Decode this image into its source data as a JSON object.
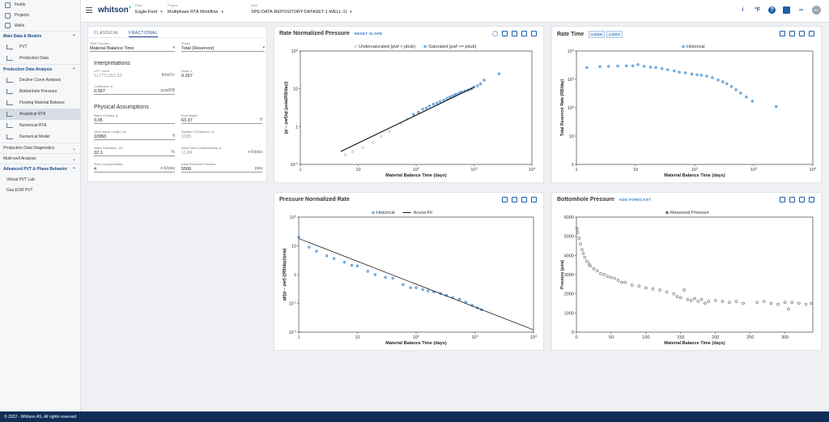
{
  "sidebar": {
    "top_items": [
      {
        "label": "Fields",
        "icon": "fields-icon"
      },
      {
        "label": "Projects",
        "icon": "projects-icon"
      },
      {
        "label": "Wells",
        "icon": "wells-icon"
      }
    ],
    "sections": [
      {
        "label": "Main Data & Models",
        "items": [
          {
            "label": "PVT",
            "active": false
          },
          {
            "label": "Production Data",
            "active": false
          }
        ]
      },
      {
        "label": "Production Data Analysis",
        "items": [
          {
            "label": "Decline Curve Analysis",
            "active": false
          },
          {
            "label": "Bottomhole Pressure",
            "active": false
          },
          {
            "label": "Flowing Material Balance",
            "active": false
          },
          {
            "label": "Analytical RTA",
            "active": true
          },
          {
            "label": "Numerical RTA",
            "active": false
          },
          {
            "label": "Numerical Model",
            "active": false
          }
        ]
      },
      {
        "label": "Production Data Diagnostics",
        "items": []
      },
      {
        "label": "Multi-well Analysis",
        "items": []
      },
      {
        "label": "Advanced PVT & Phase Behavior",
        "items": [
          {
            "label": "Virtual PVT Lab",
            "active": false
          },
          {
            "label": "Gas EOR PVT",
            "active": false
          }
        ]
      }
    ]
  },
  "topbar": {
    "logo": "whitson",
    "logo_sup": "+",
    "field": {
      "label": "Field",
      "value": "Eagle-Ford"
    },
    "project": {
      "label": "Project",
      "value": "Multiphase RTA Workflow"
    },
    "well": {
      "label": "Well",
      "value": "SPE-DATA-REPOSITORY-DATASET-1-WELL-1I"
    },
    "avatar": "KV"
  },
  "inputs": {
    "tabs": [
      "CLASSICAL",
      "FRACTIONAL"
    ],
    "active_tab": "FRACTIONAL",
    "time_function": {
      "label": "Time Function",
      "value": "Material Balance Time"
    },
    "phase": {
      "label": "Phase",
      "value": "Total (Reservoir)"
    },
    "interpretations_title": "Interpretations",
    "lfp": {
      "label": "LFP = Ac√k",
      "value": "117771261.51",
      "unit": "ft²mD½"
    },
    "delta": {
      "label": "Delta, δ",
      "value": "0.257"
    },
    "coefficient": {
      "label": "Coefficient, m",
      "value": "0.067",
      "unit": "psia/RB"
    },
    "physical_title": "Physical Assumptions",
    "porosity": {
      "label": "Matrix Porosity, φ",
      "value": "0.05"
    },
    "frac_height": {
      "label": "Frac Height",
      "value": "63.37",
      "unit": "ft"
    },
    "lateral_length": {
      "label": "Well Lateral Length, Lw",
      "value": "10950",
      "unit": "ft"
    },
    "fractures": {
      "label": "Number of Fractures, Nf",
      "value": "1035"
    },
    "water_sat": {
      "label": "Water Saturation, Sw",
      "value": "32.1",
      "unit": "%"
    },
    "total_comp": {
      "label": "Initial Total Compressibility, ct",
      "value": "11.84",
      "unit": "e-6/psia"
    },
    "rock_comp": {
      "label": "Rock Compressibility",
      "value": "4",
      "unit": "e-6/psia"
    },
    "init_pres": {
      "label": "Initial Reservoir Pressure",
      "value": "5500",
      "unit": "psia"
    }
  },
  "charts": {
    "rnp": {
      "title": "Rate Normalized Pressure",
      "button": "RESET SLOPE"
    },
    "rate_time": {
      "title": "Rate Time",
      "btn_logx": "LOGX",
      "btn_logy": "LOGY"
    },
    "pnr": {
      "title": "Pressure Normalized Rate"
    },
    "bhp": {
      "title": "Bottomhole Pressure",
      "button": "ADD FORECAST"
    }
  },
  "chart_data": [
    {
      "type": "scatter",
      "title": "Rate Normalized Pressure",
      "xlabel": "Material Balance Time (days)",
      "ylabel": "(pi − pwf)/qt (psia/(RB/day))",
      "xscale": "log",
      "yscale": "log",
      "xlim": [
        1,
        10000
      ],
      "ylim": [
        0.1,
        100
      ],
      "series": [
        {
          "name": "Undersaturated (pwf > pbub)",
          "color": "#bfc6cf",
          "points": [
            [
              6,
              0.18
            ],
            [
              8,
              0.22
            ],
            [
              12,
              0.28
            ],
            [
              18,
              0.38
            ],
            [
              25,
              0.55
            ],
            [
              35,
              0.75
            ],
            [
              55,
              1.2
            ],
            [
              70,
              1.6
            ]
          ]
        },
        {
          "name": "Saturated (pwf <= pbub)",
          "color": "#2b7fd0",
          "points": [
            [
              90,
              2.1
            ],
            [
              110,
              2.4
            ],
            [
              130,
              2.9
            ],
            [
              150,
              3.1
            ],
            [
              170,
              3.5
            ],
            [
              200,
              3.9
            ],
            [
              230,
              4.2
            ],
            [
              260,
              4.6
            ],
            [
              300,
              5.0
            ],
            [
              340,
              5.5
            ],
            [
              380,
              6.0
            ],
            [
              420,
              6.4
            ],
            [
              460,
              6.9
            ],
            [
              500,
              7.2
            ],
            [
              560,
              7.8
            ],
            [
              620,
              8.3
            ],
            [
              700,
              8.8
            ],
            [
              800,
              9.3
            ],
            [
              900,
              10.0
            ],
            [
              1000,
              11.2
            ],
            [
              1150,
              12.0
            ],
            [
              1300,
              13.5
            ],
            [
              1500,
              17.0
            ],
            [
              2700,
              25.0
            ]
          ]
        },
        {
          "name": "Fit",
          "color": "#111111",
          "points": [
            [
              5,
              0.22
            ],
            [
              1000,
              11
            ]
          ]
        }
      ]
    },
    {
      "type": "scatter",
      "title": "Rate Time",
      "xlabel": "Material Balance Time (days)",
      "ylabel": "Total Reservoir Rate (RB/day)",
      "xscale": "log",
      "yscale": "log",
      "xlim": [
        1,
        10000
      ],
      "ylim": [
        1,
        10000
      ],
      "legend": "Historical",
      "series": [
        {
          "name": "Historical",
          "color": "#2b7fd0",
          "points": [
            [
              1.5,
              2600
            ],
            [
              2.5,
              2800
            ],
            [
              3.5,
              2900
            ],
            [
              5,
              2950
            ],
            [
              7,
              3000
            ],
            [
              9,
              3000
            ],
            [
              11,
              3300
            ],
            [
              14,
              2900
            ],
            [
              18,
              2700
            ],
            [
              22,
              2600
            ],
            [
              28,
              2400
            ],
            [
              35,
              2200
            ],
            [
              45,
              2000
            ],
            [
              55,
              1800
            ],
            [
              70,
              1700
            ],
            [
              90,
              1550
            ],
            [
              110,
              1450
            ],
            [
              130,
              1400
            ],
            [
              160,
              1300
            ],
            [
              200,
              1150
            ],
            [
              250,
              950
            ],
            [
              300,
              820
            ],
            [
              350,
              700
            ],
            [
              420,
              560
            ],
            [
              500,
              430
            ],
            [
              600,
              330
            ],
            [
              750,
              240
            ],
            [
              950,
              170
            ],
            [
              2400,
              110
            ]
          ]
        }
      ]
    },
    {
      "type": "scatter",
      "title": "Pressure Normalized Rate",
      "xlabel": "Material Balance Time (days)",
      "ylabel": "qt/(pi − pwf) ((RB/day)/psia)",
      "xscale": "log",
      "yscale": "log",
      "xlim": [
        1,
        10000
      ],
      "ylim": [
        0.01,
        100
      ],
      "series": [
        {
          "name": "Historical",
          "color": "#2b7fd0",
          "points": [
            [
              1,
              20
            ],
            [
              1.5,
              9
            ],
            [
              2,
              6.5
            ],
            [
              3,
              4.5
            ],
            [
              4,
              3.6
            ],
            [
              6,
              2.7
            ],
            [
              8,
              2.1
            ],
            [
              10,
              2.0
            ],
            [
              15,
              1.3
            ],
            [
              20,
              1.0
            ],
            [
              30,
              0.8
            ],
            [
              40,
              0.75
            ],
            [
              60,
              0.45
            ],
            [
              80,
              0.35
            ],
            [
              100,
              0.35
            ],
            [
              130,
              0.3
            ],
            [
              160,
              0.27
            ],
            [
              200,
              0.25
            ],
            [
              260,
              0.22
            ],
            [
              330,
              0.19
            ],
            [
              420,
              0.16
            ],
            [
              550,
              0.14
            ],
            [
              700,
              0.11
            ],
            [
              900,
              0.085
            ],
            [
              1100,
              0.07
            ],
            [
              1300,
              0.06
            ]
          ]
        },
        {
          "name": "Acuna Fit",
          "color": "#111111",
          "points": [
            [
              1,
              18
            ],
            [
              10000,
              0.012
            ]
          ]
        }
      ]
    },
    {
      "type": "scatter",
      "title": "Bottomhole Pressure",
      "xlabel": "Material Balance Time (days)",
      "ylabel": "Pressure (psia)",
      "xlim": [
        0,
        340
      ],
      "ylim": [
        0,
        6000
      ],
      "legend": "Measured Pressure",
      "series": [
        {
          "name": "Measured Pressure",
          "color": "#222222",
          "points": [
            [
              1,
              5400
            ],
            [
              2,
              5200
            ],
            [
              4,
              4900
            ],
            [
              6,
              4600
            ],
            [
              8,
              4300
            ],
            [
              10,
              4100
            ],
            [
              12,
              3900
            ],
            [
              15,
              3700
            ],
            [
              18,
              3550
            ],
            [
              20,
              3450
            ],
            [
              25,
              3300
            ],
            [
              30,
              3200
            ],
            [
              35,
              3050
            ],
            [
              40,
              3000
            ],
            [
              45,
              2900
            ],
            [
              50,
              2850
            ],
            [
              55,
              2800
            ],
            [
              60,
              2700
            ],
            [
              65,
              2600
            ],
            [
              70,
              2600
            ],
            [
              80,
              2450
            ],
            [
              90,
              2400
            ],
            [
              100,
              2300
            ],
            [
              110,
              2250
            ],
            [
              120,
              2200
            ],
            [
              130,
              2100
            ],
            [
              140,
              2000
            ],
            [
              145,
              1850
            ],
            [
              150,
              1800
            ],
            [
              155,
              2200
            ],
            [
              160,
              1700
            ],
            [
              165,
              1650
            ],
            [
              170,
              1750
            ],
            [
              175,
              1600
            ],
            [
              180,
              1700
            ],
            [
              185,
              1500
            ],
            [
              190,
              1600
            ],
            [
              200,
              1650
            ],
            [
              210,
              1600
            ],
            [
              220,
              1550
            ],
            [
              230,
              1600
            ],
            [
              240,
              1500
            ],
            [
              260,
              1550
            ],
            [
              270,
              1600
            ],
            [
              280,
              1500
            ],
            [
              290,
              1450
            ],
            [
              300,
              1550
            ],
            [
              305,
              1200
            ],
            [
              310,
              1550
            ],
            [
              320,
              1500
            ],
            [
              330,
              1450
            ],
            [
              338,
              1500
            ]
          ]
        }
      ]
    }
  ],
  "footer": "© 2022 - Whitson AS. All rights reserved"
}
